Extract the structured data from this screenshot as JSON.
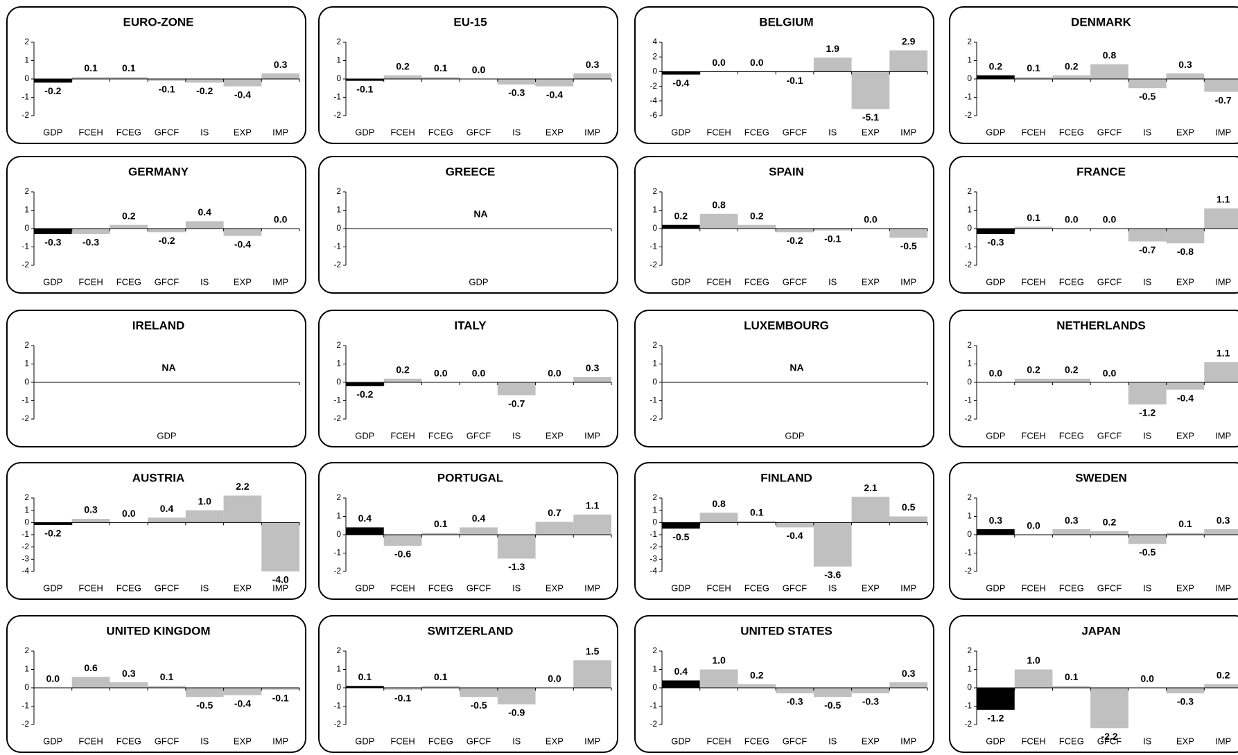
{
  "chart_data": [
    {
      "type": "bar",
      "title": "EURO-ZONE",
      "categories": [
        "GDP",
        "FCEH",
        "FCEG",
        "GFCF",
        "IS",
        "EXP",
        "IMP"
      ],
      "values": [
        -0.2,
        0.1,
        0.1,
        -0.1,
        -0.2,
        -0.4,
        0.3
      ],
      "value_labels": [
        "-0.2",
        "0.1",
        "0.1",
        "-0.1",
        "-0.2",
        "-0.4",
        "0.3"
      ],
      "colors": [
        "#000000",
        "#c0c0c0",
        "#c0c0c0",
        "#c0c0c0",
        "#c0c0c0",
        "#c0c0c0",
        "#c0c0c0"
      ],
      "ylim": [
        -2,
        2
      ],
      "yticks": [
        -2,
        -1,
        0,
        1,
        2
      ]
    },
    {
      "type": "bar",
      "title": "EU-15",
      "categories": [
        "GDP",
        "FCEH",
        "FCEG",
        "GFCF",
        "IS",
        "EXP",
        "IMP"
      ],
      "values": [
        -0.1,
        0.2,
        0.1,
        0,
        -0.3,
        -0.4,
        0.3
      ],
      "value_labels": [
        "-0.1",
        "0.2",
        "0.1",
        "0.0",
        "-0.3",
        "-0.4",
        "0.3"
      ],
      "colors": [
        "#000000",
        "#c0c0c0",
        "#c0c0c0",
        "#c0c0c0",
        "#c0c0c0",
        "#c0c0c0",
        "#c0c0c0"
      ],
      "ylim": [
        -2,
        2
      ],
      "yticks": [
        -2,
        -1,
        0,
        1,
        2
      ]
    },
    {
      "type": "bar",
      "title": "BELGIUM",
      "categories": [
        "GDP",
        "FCEH",
        "FCEG",
        "GFCF",
        "IS",
        "EXP",
        "IMP"
      ],
      "values": [
        -0.4,
        0,
        0,
        -0.1,
        1.9,
        -5.1,
        2.9
      ],
      "value_labels": [
        "-0.4",
        "0.0",
        "0.0",
        "-0.1",
        "1.9",
        "-5.1",
        "2.9"
      ],
      "colors": [
        "#000000",
        "#c0c0c0",
        "#c0c0c0",
        "#c0c0c0",
        "#c0c0c0",
        "#c0c0c0",
        "#c0c0c0"
      ],
      "ylim": [
        -6,
        4
      ],
      "yticks": [
        -6,
        -4,
        -2,
        0,
        2,
        4
      ]
    },
    {
      "type": "bar",
      "title": "DENMARK",
      "categories": [
        "GDP",
        "FCEH",
        "FCEG",
        "GFCF",
        "IS",
        "EXP",
        "IMP"
      ],
      "values": [
        0.2,
        0.1,
        0.2,
        0.8,
        -0.5,
        0.3,
        -0.7
      ],
      "value_labels": [
        "0.2",
        "0.1",
        "0.2",
        "0.8",
        "-0.5",
        "0.3",
        "-0.7"
      ],
      "colors": [
        "#000000",
        "#c0c0c0",
        "#c0c0c0",
        "#c0c0c0",
        "#c0c0c0",
        "#c0c0c0",
        "#c0c0c0"
      ],
      "ylim": [
        -2,
        2
      ],
      "yticks": [
        -2,
        -1,
        0,
        1,
        2
      ]
    },
    {
      "type": "bar",
      "title": "GERMANY",
      "categories": [
        "GDP",
        "FCEH",
        "FCEG",
        "GFCF",
        "IS",
        "EXP",
        "IMP"
      ],
      "values": [
        -0.3,
        -0.3,
        0.2,
        -0.2,
        0.4,
        -0.4,
        0
      ],
      "value_labels": [
        "-0.3",
        "-0.3",
        "0.2",
        "-0.2",
        "0.4",
        "-0.4",
        "0.0"
      ],
      "colors": [
        "#000000",
        "#c0c0c0",
        "#c0c0c0",
        "#c0c0c0",
        "#c0c0c0",
        "#c0c0c0",
        "#c0c0c0"
      ],
      "ylim": [
        -2,
        2
      ],
      "yticks": [
        -2,
        -1,
        0,
        1,
        2
      ]
    },
    {
      "type": "bar",
      "title": "GREECE",
      "categories": [
        "GDP"
      ],
      "values": [
        null
      ],
      "annotation": "NA",
      "ylim": [
        -2,
        2
      ],
      "yticks": [
        -2,
        -1,
        0,
        1,
        2
      ]
    },
    {
      "type": "bar",
      "title": "SPAIN",
      "categories": [
        "GDP",
        "FCEH",
        "FCEG",
        "GFCF",
        "IS",
        "EXP",
        "IMP"
      ],
      "values": [
        0.2,
        0.8,
        0.2,
        -0.2,
        -0.1,
        0,
        -0.5
      ],
      "value_labels": [
        "0.2",
        "0.8",
        "0.2",
        "-0.2",
        "-0.1",
        "0.0",
        "-0.5"
      ],
      "colors": [
        "#000000",
        "#c0c0c0",
        "#c0c0c0",
        "#c0c0c0",
        "#c0c0c0",
        "#c0c0c0",
        "#c0c0c0"
      ],
      "ylim": [
        -2,
        2
      ],
      "yticks": [
        -2,
        -1,
        0,
        1,
        2
      ]
    },
    {
      "type": "bar",
      "title": "FRANCE",
      "categories": [
        "GDP",
        "FCEH",
        "FCEG",
        "GFCF",
        "IS",
        "EXP",
        "IMP"
      ],
      "values": [
        -0.3,
        0.1,
        0,
        0,
        -0.7,
        -0.8,
        1.1
      ],
      "value_labels": [
        "-0.3",
        "0.1",
        "0.0",
        "0.0",
        "-0.7",
        "-0.8",
        "1.1"
      ],
      "colors": [
        "#000000",
        "#c0c0c0",
        "#c0c0c0",
        "#c0c0c0",
        "#c0c0c0",
        "#c0c0c0",
        "#c0c0c0"
      ],
      "ylim": [
        -2,
        2
      ],
      "yticks": [
        -2,
        -1,
        0,
        1,
        2
      ]
    },
    {
      "type": "bar",
      "title": "IRELAND",
      "categories": [
        "GDP"
      ],
      "values": [
        null
      ],
      "annotation": "NA",
      "ylim": [
        -2,
        2
      ],
      "yticks": [
        -2,
        -1,
        0,
        1,
        2
      ]
    },
    {
      "type": "bar",
      "title": "ITALY",
      "categories": [
        "GDP",
        "FCEH",
        "FCEG",
        "GFCF",
        "IS",
        "EXP",
        "IMP"
      ],
      "values": [
        -0.2,
        0.2,
        0,
        0,
        -0.7,
        0,
        0.3
      ],
      "value_labels": [
        "-0.2",
        "0.2",
        "0.0",
        "0.0",
        "-0.7",
        "0.0",
        "0.3"
      ],
      "colors": [
        "#000000",
        "#c0c0c0",
        "#c0c0c0",
        "#c0c0c0",
        "#c0c0c0",
        "#c0c0c0",
        "#c0c0c0"
      ],
      "ylim": [
        -2,
        2
      ],
      "yticks": [
        -2,
        -1,
        0,
        1,
        2
      ]
    },
    {
      "type": "bar",
      "title": "LUXEMBOURG",
      "categories": [
        "GDP"
      ],
      "values": [
        null
      ],
      "annotation": "NA",
      "ylim": [
        -2,
        2
      ],
      "yticks": [
        -2,
        -1,
        0,
        1,
        2
      ]
    },
    {
      "type": "bar",
      "title": "NETHERLANDS",
      "categories": [
        "GDP",
        "FCEH",
        "FCEG",
        "GFCF",
        "IS",
        "EXP",
        "IMP"
      ],
      "values": [
        0,
        0.2,
        0.2,
        0,
        -1.2,
        -0.4,
        1.1
      ],
      "value_labels": [
        "0.0",
        "0.2",
        "0.2",
        "0.0",
        "-1.2",
        "-0.4",
        "1.1"
      ],
      "colors": [
        "#000000",
        "#c0c0c0",
        "#c0c0c0",
        "#c0c0c0",
        "#c0c0c0",
        "#c0c0c0",
        "#c0c0c0"
      ],
      "ylim": [
        -2,
        2
      ],
      "yticks": [
        -2,
        -1,
        0,
        1,
        2
      ]
    },
    {
      "type": "bar",
      "title": "AUSTRIA",
      "categories": [
        "GDP",
        "FCEH",
        "FCEG",
        "GFCF",
        "IS",
        "EXP",
        "IMP"
      ],
      "values": [
        -0.2,
        0.3,
        0,
        0.4,
        1,
        2.2,
        -4
      ],
      "value_labels": [
        "-0.2",
        "0.3",
        "0.0",
        "0.4",
        "1.0",
        "2.2",
        "-4.0"
      ],
      "colors": [
        "#000000",
        "#c0c0c0",
        "#c0c0c0",
        "#c0c0c0",
        "#c0c0c0",
        "#c0c0c0",
        "#c0c0c0"
      ],
      "ylim": [
        -4,
        2
      ],
      "yticks": [
        -4,
        -3,
        -2,
        -1,
        0,
        1,
        2
      ]
    },
    {
      "type": "bar",
      "title": "PORTUGAL",
      "categories": [
        "GDP",
        "FCEH",
        "FCEG",
        "GFCF",
        "IS",
        "EXP",
        "IMP"
      ],
      "values": [
        0.4,
        -0.6,
        0.1,
        0.4,
        -1.3,
        0.7,
        1.1
      ],
      "value_labels": [
        "0.4",
        "-0.6",
        "0.1",
        "0.4",
        "-1.3",
        "0.7",
        "1.1"
      ],
      "colors": [
        "#000000",
        "#c0c0c0",
        "#c0c0c0",
        "#c0c0c0",
        "#c0c0c0",
        "#c0c0c0",
        "#c0c0c0"
      ],
      "ylim": [
        -2,
        2
      ],
      "yticks": [
        -2,
        -1,
        0,
        1,
        2
      ]
    },
    {
      "type": "bar",
      "title": "FINLAND",
      "categories": [
        "GDP",
        "FCEH",
        "FCEG",
        "GFCF",
        "IS",
        "EXP",
        "IMP"
      ],
      "values": [
        -0.5,
        0.8,
        0.1,
        -0.4,
        -3.6,
        2.1,
        0.5
      ],
      "value_labels": [
        "-0.5",
        "0.8",
        "0.1",
        "-0.4",
        "-3.6",
        "2.1",
        "0.5"
      ],
      "colors": [
        "#000000",
        "#c0c0c0",
        "#c0c0c0",
        "#c0c0c0",
        "#c0c0c0",
        "#c0c0c0",
        "#c0c0c0"
      ],
      "ylim": [
        -4,
        2
      ],
      "yticks": [
        -4,
        -3,
        -2,
        -1,
        0,
        1,
        2
      ]
    },
    {
      "type": "bar",
      "title": "SWEDEN",
      "categories": [
        "GDP",
        "FCEH",
        "FCEG",
        "GFCF",
        "IS",
        "EXP",
        "IMP"
      ],
      "values": [
        0.3,
        0,
        0.3,
        0.2,
        -0.5,
        0.1,
        0.3
      ],
      "value_labels": [
        "0.3",
        "0.0",
        "0.3",
        "0.2",
        "-0.5",
        "0.1",
        "0.3"
      ],
      "colors": [
        "#000000",
        "#c0c0c0",
        "#c0c0c0",
        "#c0c0c0",
        "#c0c0c0",
        "#c0c0c0",
        "#c0c0c0"
      ],
      "ylim": [
        -2,
        2
      ],
      "yticks": [
        -2,
        -1,
        0,
        1,
        2
      ]
    },
    {
      "type": "bar",
      "title": "UNITED KINGDOM",
      "categories": [
        "GDP",
        "FCEH",
        "FCEG",
        "GFCF",
        "IS",
        "EXP",
        "IMP"
      ],
      "values": [
        0,
        0.6,
        0.3,
        0.1,
        -0.5,
        -0.4,
        -0.1
      ],
      "value_labels": [
        "0.0",
        "0.6",
        "0.3",
        "0.1",
        "-0.5",
        "-0.4",
        "-0.1"
      ],
      "colors": [
        "#000000",
        "#c0c0c0",
        "#c0c0c0",
        "#c0c0c0",
        "#c0c0c0",
        "#c0c0c0",
        "#c0c0c0"
      ],
      "ylim": [
        -2,
        2
      ],
      "yticks": [
        -2,
        -1,
        0,
        1,
        2
      ]
    },
    {
      "type": "bar",
      "title": "SWITZERLAND",
      "categories": [
        "GDP",
        "FCEH",
        "FCEG",
        "GFCF",
        "IS",
        "EXP",
        "IMP"
      ],
      "values": [
        0.1,
        -0.1,
        0.1,
        -0.5,
        -0.9,
        0,
        1.5
      ],
      "value_labels": [
        "0.1",
        "-0.1",
        "0.1",
        "-0.5",
        "-0.9",
        "0.0",
        "1.5"
      ],
      "colors": [
        "#000000",
        "#c0c0c0",
        "#c0c0c0",
        "#c0c0c0",
        "#c0c0c0",
        "#c0c0c0",
        "#c0c0c0"
      ],
      "ylim": [
        -2,
        2
      ],
      "yticks": [
        -2,
        -1,
        0,
        1,
        2
      ]
    },
    {
      "type": "bar",
      "title": "UNITED STATES",
      "categories": [
        "GDP",
        "FCEH",
        "FCEG",
        "GFCF",
        "IS",
        "EXP",
        "IMP"
      ],
      "values": [
        0.4,
        1,
        0.2,
        -0.3,
        -0.5,
        -0.3,
        0.3
      ],
      "value_labels": [
        "0.4",
        "1.0",
        "0.2",
        "-0.3",
        "-0.5",
        "-0.3",
        "0.3"
      ],
      "colors": [
        "#000000",
        "#c0c0c0",
        "#c0c0c0",
        "#c0c0c0",
        "#c0c0c0",
        "#c0c0c0",
        "#c0c0c0"
      ],
      "ylim": [
        -2,
        2
      ],
      "yticks": [
        -2,
        -1,
        0,
        1,
        2
      ]
    },
    {
      "type": "bar",
      "title": "JAPAN",
      "categories": [
        "GDP",
        "FCEH",
        "FCEG",
        "GFCF",
        "IS",
        "EXP",
        "IMP"
      ],
      "values": [
        -1.2,
        1,
        0.1,
        -2.2,
        0,
        -0.3,
        0.2
      ],
      "value_labels": [
        "-1.2",
        "1.0",
        "0.1",
        "-2.2",
        "0.0",
        "-0.3",
        "0.2"
      ],
      "colors": [
        "#000000",
        "#c0c0c0",
        "#c0c0c0",
        "#c0c0c0",
        "#c0c0c0",
        "#c0c0c0",
        "#c0c0c0"
      ],
      "ylim": [
        -2,
        2
      ],
      "yticks": [
        -2,
        -1,
        0,
        1,
        2
      ]
    }
  ]
}
